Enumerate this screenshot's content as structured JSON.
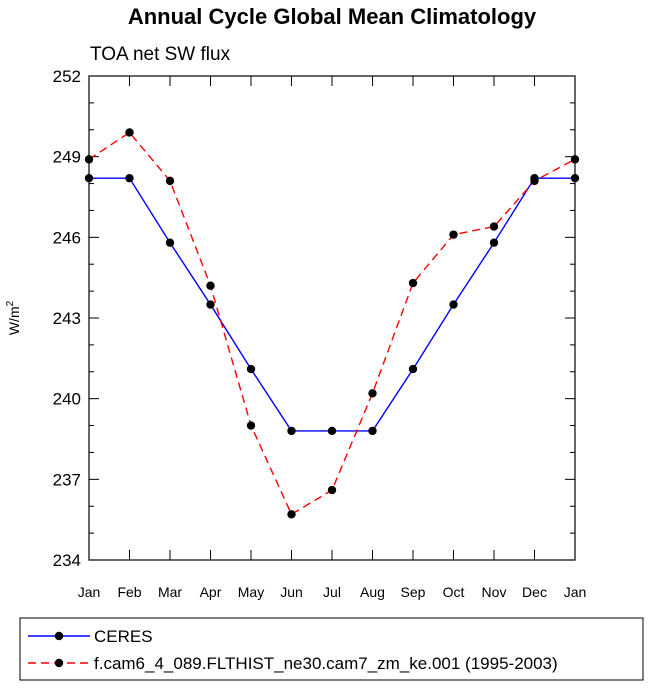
{
  "chart_data": {
    "type": "line",
    "title": "Annual Cycle Global Mean Climatology",
    "subtitle": "TOA net SW flux",
    "ylabel": "W/m",
    "ylabel_sup": "2",
    "xlabel": "",
    "categories": [
      "Jan",
      "Feb",
      "Mar",
      "Apr",
      "May",
      "Jun",
      "Jul",
      "Aug",
      "Sep",
      "Oct",
      "Nov",
      "Dec",
      "Jan"
    ],
    "ylim": [
      234,
      252
    ],
    "yticks": [
      "234",
      "237",
      "240",
      "243",
      "246",
      "249",
      "252"
    ],
    "grid": false,
    "legend_position": "bottom",
    "series": [
      {
        "name": "CERES",
        "color": "#0000ff",
        "dash": "solid",
        "values": [
          248.2,
          248.2,
          245.8,
          243.5,
          241.1,
          238.8,
          238.8,
          238.8,
          241.1,
          243.5,
          245.8,
          248.2,
          248.2
        ]
      },
      {
        "name": "f.cam6_4_089.FLTHIST_ne30.cam7_zm_ke.001 (1995-2003)",
        "color": "#ff0000",
        "dash": "dashed",
        "values": [
          248.9,
          249.9,
          248.1,
          244.2,
          239.0,
          235.7,
          236.6,
          240.2,
          244.3,
          246.1,
          246.4,
          248.1,
          248.9
        ]
      }
    ]
  }
}
